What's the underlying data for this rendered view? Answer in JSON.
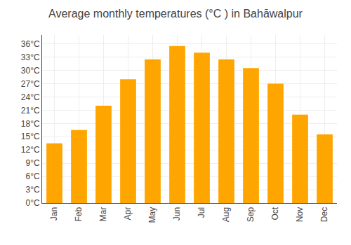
{
  "chart_data": {
    "type": "bar",
    "title": "Average monthly temperatures (°C ) in Bahāwalpur",
    "categories": [
      "Jan",
      "Feb",
      "Mar",
      "Apr",
      "May",
      "Jun",
      "Jul",
      "Aug",
      "Sep",
      "Oct",
      "Nov",
      "Dec"
    ],
    "values": [
      13.5,
      16.5,
      22.0,
      28.0,
      32.5,
      35.5,
      34.0,
      32.5,
      30.5,
      27.0,
      20.0,
      15.5
    ],
    "color": "#FFA500",
    "ylim": [
      0,
      38
    ],
    "yticks": [
      {
        "value": 0,
        "label": "0°C"
      },
      {
        "value": 3,
        "label": "3°C"
      },
      {
        "value": 6,
        "label": "6°C"
      },
      {
        "value": 9,
        "label": "9°C"
      },
      {
        "value": 12,
        "label": "12°C"
      },
      {
        "value": 15,
        "label": "15°C"
      },
      {
        "value": 18,
        "label": "18°C"
      },
      {
        "value": 21,
        "label": "21°C"
      },
      {
        "value": 24,
        "label": "24°C"
      },
      {
        "value": 27,
        "label": "27°C"
      },
      {
        "value": 30,
        "label": "30°C"
      },
      {
        "value": 33,
        "label": "33°C"
      },
      {
        "value": 36,
        "label": "36°C"
      }
    ],
    "grid": true
  }
}
